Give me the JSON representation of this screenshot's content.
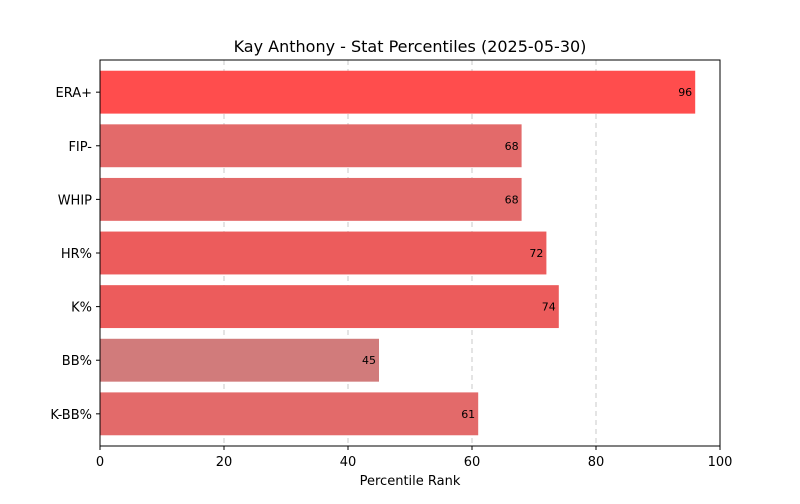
{
  "chart_data": {
    "type": "bar",
    "orientation": "horizontal",
    "title": "Kay Anthony - Stat Percentiles (2025-05-30)",
    "xlabel": "Percentile Rank",
    "ylabel": "",
    "xlim": [
      0,
      100
    ],
    "xticks": [
      0,
      20,
      40,
      60,
      80,
      100
    ],
    "grid": "x-dashed",
    "categories": [
      "ERA+",
      "FIP-",
      "WHIP",
      "HR%",
      "K%",
      "BB%",
      "K-BB%"
    ],
    "values": [
      96,
      68,
      68,
      72,
      74,
      45,
      61
    ],
    "bar_colors": [
      "#ff4d4d",
      "#e36a6a",
      "#e36a6a",
      "#ec5c5c",
      "#ec5c5c",
      "#d17b7b",
      "#e36a6a"
    ],
    "data_labels": [
      "96",
      "68",
      "68",
      "72",
      "74",
      "45",
      "61"
    ]
  }
}
